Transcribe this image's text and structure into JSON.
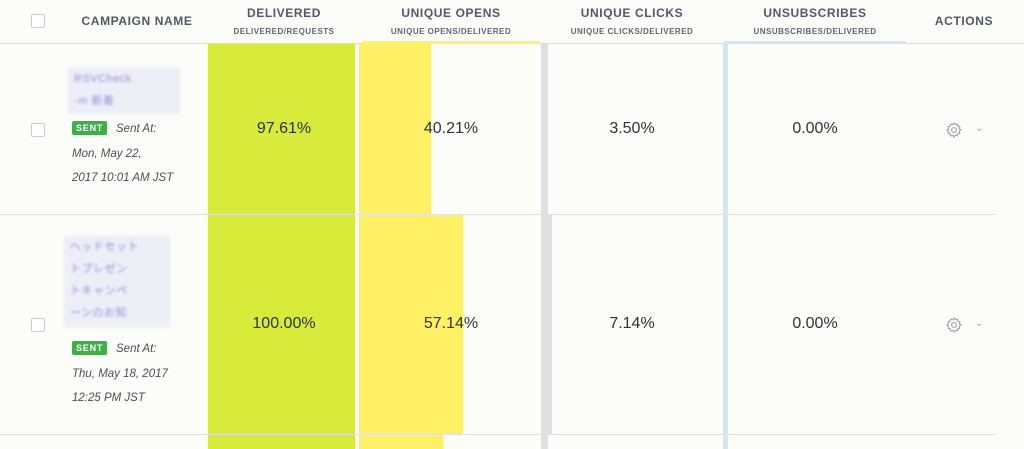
{
  "header": {
    "campaign_name": "CAMPAIGN NAME",
    "delivered": {
      "title": "DELIVERED",
      "sub": "DELIVERED/REQUESTS"
    },
    "unique_opens": {
      "title": "UNIQUE OPENS",
      "sub": "UNIQUE OPENS/DELIVERED"
    },
    "unique_clicks": {
      "title": "UNIQUE CLICKS",
      "sub": "UNIQUE CLICKS/DELIVERED"
    },
    "unsubscribes": {
      "title": "UNSUBSCRIBES",
      "sub": "UNSUBSCRIBES/DELIVERED"
    },
    "actions": "ACTIONS"
  },
  "colors": {
    "delivered": "#d8ea3a",
    "opens": "#fff066",
    "clicks": "#dde1e1",
    "unsubscribes": "#cfe8f3",
    "sent_badge": "#3fae49"
  },
  "rows": [
    {
      "name_lines": [
        "RSVCheck",
        "-m 新着"
      ],
      "status": "SENT",
      "sent_label": "Sent At:",
      "sent_date": "Mon, May 22,",
      "sent_time": "2017 10:01 AM JST",
      "delivered": "97.61%",
      "unique_opens": "40.21%",
      "unique_clicks": "3.50%",
      "unsubscribes": "0.00%",
      "opens_fraction": 0.4021
    },
    {
      "name_lines": [
        "ヘッドセット",
        "トプレゼン",
        "トキャンペ",
        "ーンのお知"
      ],
      "status": "SENT",
      "sent_label": "Sent At:",
      "sent_date": "Thu, May 18, 2017",
      "sent_time": "12:25 PM JST",
      "delivered": "100.00%",
      "unique_opens": "57.14%",
      "unique_clicks": "7.14%",
      "unsubscribes": "0.00%",
      "opens_fraction": 0.5714
    }
  ],
  "icons": {
    "settings": "gear-icon",
    "dropdown": "chevron-down-icon"
  }
}
